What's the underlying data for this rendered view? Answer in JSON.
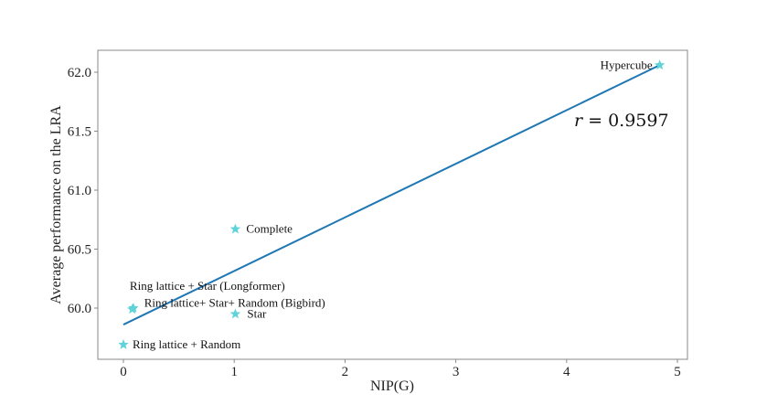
{
  "chart_data": {
    "type": "scatter",
    "title": "",
    "xlabel": "NIP(G)",
    "ylabel": "Average performance on the LRA",
    "xlim": [
      -0.23,
      5.09
    ],
    "ylim": [
      59.58,
      62.19
    ],
    "xticks": [
      0,
      1,
      2,
      3,
      4,
      5
    ],
    "xtick_labels": [
      "0",
      "1",
      "2",
      "3",
      "4",
      "5"
    ],
    "yticks": [
      60.0,
      60.5,
      61.0,
      61.5,
      62.0
    ],
    "ytick_labels": [
      "60.0",
      "60.5",
      "61.0",
      "61.5",
      "62.0"
    ],
    "grid": false,
    "legend": null,
    "marker": "star",
    "marker_color": "#5fd3d9",
    "line_color": "#1f77b4",
    "points": [
      {
        "label": "Hypercube",
        "x": 4.84,
        "y": 62.06
      },
      {
        "label": "Complete",
        "x": 1.01,
        "y": 60.67
      },
      {
        "label": "Star",
        "x": 1.01,
        "y": 59.95
      },
      {
        "label": "Ring lattice + Star (Longformer)",
        "x": 0.09,
        "y": 60.0
      },
      {
        "label": "Ring lattice+ Star+ Random (Bigbird)",
        "x": 0.08,
        "y": 59.99
      },
      {
        "label": "Ring lattice + Random",
        "x": 0.0,
        "y": 59.69
      }
    ],
    "fit_line": {
      "x": [
        0.0,
        4.84
      ],
      "y": [
        59.86,
        62.06
      ]
    },
    "annotations": [
      {
        "text": "r = 0.9597",
        "x": 4.05,
        "y": 61.52
      }
    ]
  }
}
